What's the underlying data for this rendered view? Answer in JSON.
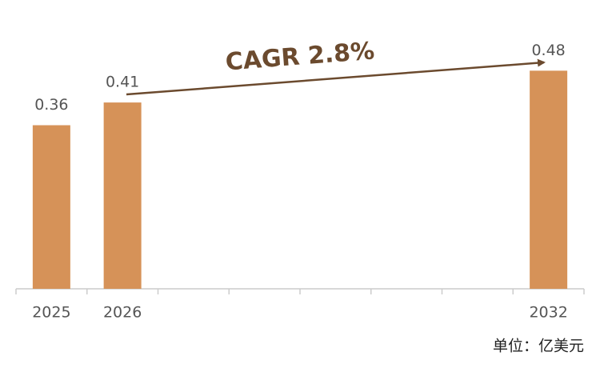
{
  "chart_data": {
    "type": "bar",
    "categories": [
      "2025",
      "2026",
      null,
      null,
      null,
      null,
      null,
      "2032"
    ],
    "values": [
      0.36,
      0.41,
      null,
      null,
      null,
      null,
      null,
      0.48
    ],
    "color": "#d69258",
    "annotation": "CAGR 2.8%",
    "unit_note": "单位：亿美元"
  }
}
